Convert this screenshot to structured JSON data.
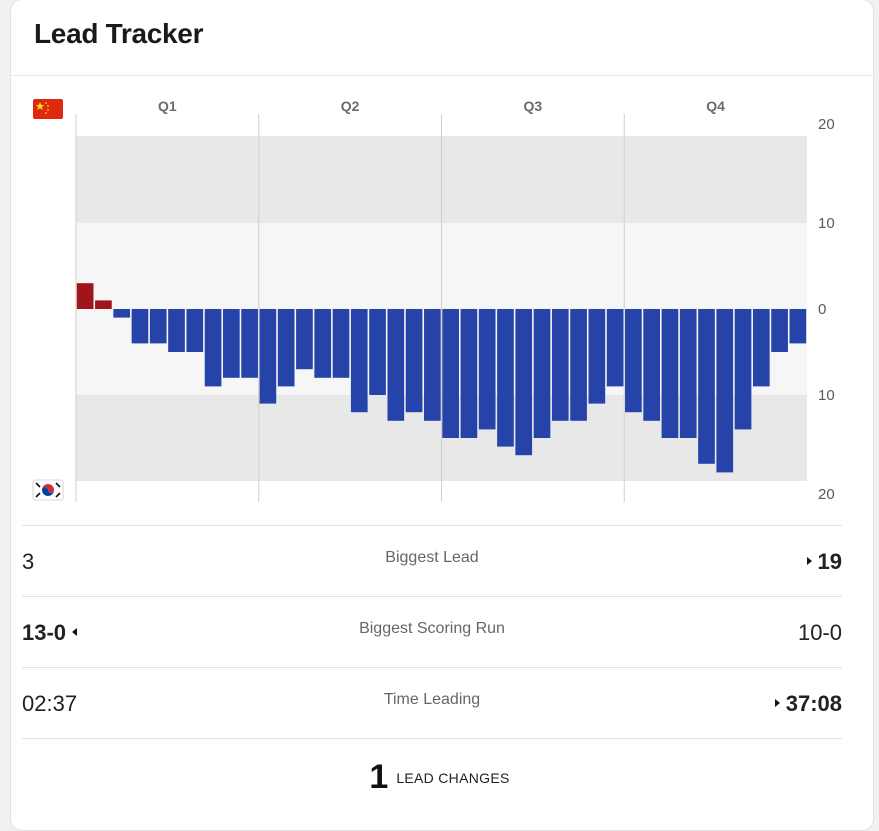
{
  "title": "Lead Tracker",
  "teams": {
    "top": {
      "flag": "china-flag-icon",
      "bar_color": "#a0141c"
    },
    "bottom": {
      "flag": "south-korea-flag-icon",
      "bar_color": "#2543a8"
    }
  },
  "chart_data": {
    "type": "bar",
    "quarters": [
      "Q1",
      "Q2",
      "Q3",
      "Q4"
    ],
    "yticks": [
      "20",
      "10",
      "0",
      "10",
      "20"
    ],
    "ylim": [
      -20,
      20
    ],
    "values": [
      3,
      1,
      -1,
      -4,
      -4,
      -5,
      -5,
      -9,
      -8,
      -8,
      -11,
      -9,
      -7,
      -8,
      -8,
      -12,
      -10,
      -13,
      -12,
      -13,
      -15,
      -15,
      -14,
      -16,
      -17,
      -15,
      -13,
      -13,
      -11,
      -9,
      -12,
      -13,
      -15,
      -15,
      -18,
      -19,
      -14,
      -9,
      -5,
      -4
    ]
  },
  "stats": [
    {
      "left": "3",
      "label": "Biggest Lead",
      "right": "19"
    },
    {
      "left": "13-0",
      "label": "Biggest Scoring Run",
      "right": "10-0"
    },
    {
      "left": "02:37",
      "label": "Time Leading",
      "right": "37:08"
    }
  ],
  "lead_changes": {
    "count": "1",
    "label": "LEAD CHANGES"
  }
}
